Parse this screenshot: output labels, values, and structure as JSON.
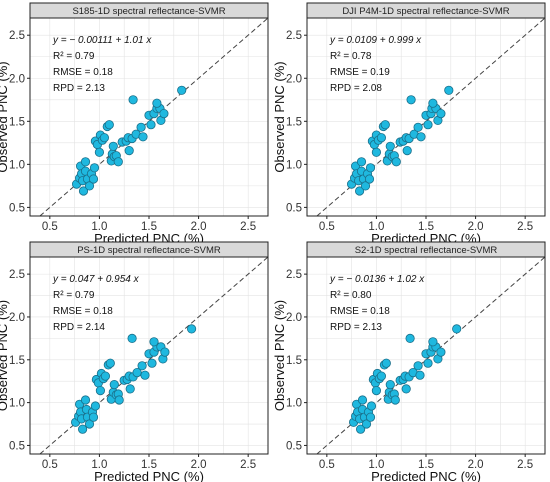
{
  "figure": {
    "colors": {
      "point_fill": "#1fb8df",
      "point_stroke": "#1a6f8a",
      "strip_fill": "#d9d9d9",
      "grid": "#e3e3e3",
      "frame": "#222222",
      "dashed_line": "#444444"
    }
  },
  "chart_data": [
    {
      "type": "scatter",
      "title": "S185-1D spectral reflectance-SVMR",
      "xlabel": "Predicted PNC (%)",
      "ylabel": "Observed PNC (%)",
      "xlim": [
        0.3,
        2.7
      ],
      "ylim": [
        0.4,
        2.7
      ],
      "xticks": [
        "0.5",
        "1.0",
        "1.5",
        "2.0",
        "2.5"
      ],
      "yticks": [
        "0.5",
        "1.0",
        "1.5",
        "2.0",
        "2.5"
      ],
      "grid": true,
      "reference_line": "1:1 dashed",
      "annotation": {
        "equation": "y = − 0.00111 + 1.01 x",
        "r2": "R² = 0.79",
        "rmse": "RMSE = 0.18",
        "rpd": "RPD = 2.13"
      },
      "points": [
        [
          0.77,
          0.77
        ],
        [
          0.8,
          0.84
        ],
        [
          0.81,
          0.98
        ],
        [
          0.82,
          0.89
        ],
        [
          0.83,
          0.81
        ],
        [
          0.84,
          0.69
        ],
        [
          0.86,
          1.03
        ],
        [
          0.86,
          0.92
        ],
        [
          0.88,
          0.83
        ],
        [
          0.9,
          0.75
        ],
        [
          0.92,
          0.89
        ],
        [
          0.94,
          0.83
        ],
        [
          0.95,
          0.96
        ],
        [
          0.96,
          1.27
        ],
        [
          0.98,
          1.23
        ],
        [
          1.0,
          1.14
        ],
        [
          1.01,
          1.34
        ],
        [
          1.03,
          1.28
        ],
        [
          1.05,
          1.31
        ],
        [
          1.08,
          1.44
        ],
        [
          1.1,
          1.46
        ],
        [
          1.12,
          1.04
        ],
        [
          1.13,
          1.12
        ],
        [
          1.14,
          1.21
        ],
        [
          1.15,
          1.09
        ],
        [
          1.17,
          1.1
        ],
        [
          1.19,
          1.03
        ],
        [
          1.23,
          1.26
        ],
        [
          1.27,
          1.27
        ],
        [
          1.29,
          1.31
        ],
        [
          1.3,
          1.16
        ],
        [
          1.33,
          1.3
        ],
        [
          1.34,
          1.75
        ],
        [
          1.37,
          1.35
        ],
        [
          1.42,
          1.43
        ],
        [
          1.44,
          1.32
        ],
        [
          1.5,
          1.57
        ],
        [
          1.52,
          1.46
        ],
        [
          1.55,
          1.59
        ],
        [
          1.58,
          1.65
        ],
        [
          1.61,
          1.65
        ],
        [
          1.62,
          1.51
        ],
        [
          1.65,
          1.59
        ],
        [
          1.83,
          1.86
        ],
        [
          1.58,
          1.71
        ]
      ]
    },
    {
      "type": "scatter",
      "title": "DJI P4M-1D spectral reflectance-SVMR",
      "xlabel": "Predicted PNC (%)",
      "ylabel": "Observed PNC (%)",
      "xlim": [
        0.3,
        2.7
      ],
      "ylim": [
        0.4,
        2.7
      ],
      "xticks": [
        "0.5",
        "1.0",
        "1.5",
        "2.0",
        "2.5"
      ],
      "yticks": [
        "0.5",
        "1.0",
        "1.5",
        "2.0",
        "2.5"
      ],
      "grid": true,
      "reference_line": "1:1 dashed",
      "annotation": {
        "equation": "y = 0.0109 + 0.999 x",
        "r2": "R² = 0.78",
        "rmse": "RMSE = 0.19",
        "rpd": "RPD = 2.08"
      },
      "points": [
        [
          0.75,
          0.77
        ],
        [
          0.78,
          0.84
        ],
        [
          0.79,
          0.98
        ],
        [
          0.8,
          0.89
        ],
        [
          0.82,
          0.81
        ],
        [
          0.83,
          0.69
        ],
        [
          0.85,
          1.03
        ],
        [
          0.85,
          0.92
        ],
        [
          0.87,
          0.83
        ],
        [
          0.89,
          0.75
        ],
        [
          0.91,
          0.89
        ],
        [
          0.93,
          0.83
        ],
        [
          0.94,
          0.96
        ],
        [
          0.96,
          1.27
        ],
        [
          0.98,
          1.23
        ],
        [
          1.0,
          1.14
        ],
        [
          1.0,
          1.34
        ],
        [
          1.02,
          1.28
        ],
        [
          1.05,
          1.31
        ],
        [
          1.07,
          1.44
        ],
        [
          1.09,
          1.46
        ],
        [
          1.11,
          1.04
        ],
        [
          1.13,
          1.12
        ],
        [
          1.14,
          1.21
        ],
        [
          1.16,
          1.09
        ],
        [
          1.18,
          1.1
        ],
        [
          1.2,
          1.03
        ],
        [
          1.24,
          1.26
        ],
        [
          1.27,
          1.27
        ],
        [
          1.3,
          1.31
        ],
        [
          1.31,
          1.16
        ],
        [
          1.33,
          1.3
        ],
        [
          1.35,
          1.75
        ],
        [
          1.38,
          1.35
        ],
        [
          1.42,
          1.43
        ],
        [
          1.45,
          1.32
        ],
        [
          1.5,
          1.57
        ],
        [
          1.52,
          1.46
        ],
        [
          1.55,
          1.59
        ],
        [
          1.56,
          1.65
        ],
        [
          1.6,
          1.65
        ],
        [
          1.62,
          1.51
        ],
        [
          1.65,
          1.59
        ],
        [
          1.73,
          1.86
        ],
        [
          1.57,
          1.71
        ]
      ]
    },
    {
      "type": "scatter",
      "title": "PS-1D spectral reflectance-SVMR",
      "xlabel": "Predicted PNC (%)",
      "ylabel": "Observed PNC (%)",
      "xlim": [
        0.3,
        2.7
      ],
      "ylim": [
        0.4,
        2.7
      ],
      "xticks": [
        "0.5",
        "1.0",
        "1.5",
        "2.0",
        "2.5"
      ],
      "yticks": [
        "0.5",
        "1.0",
        "1.5",
        "2.0",
        "2.5"
      ],
      "grid": true,
      "reference_line": "1:1 dashed",
      "annotation": {
        "equation": "y = 0.047 + 0.954 x",
        "r2": "R² = 0.79",
        "rmse": "RMSE = 0.18",
        "rpd": "RPD = 2.14"
      },
      "points": [
        [
          0.76,
          0.77
        ],
        [
          0.79,
          0.84
        ],
        [
          0.8,
          0.98
        ],
        [
          0.81,
          0.89
        ],
        [
          0.82,
          0.81
        ],
        [
          0.83,
          0.69
        ],
        [
          0.86,
          1.03
        ],
        [
          0.87,
          0.92
        ],
        [
          0.88,
          0.83
        ],
        [
          0.9,
          0.75
        ],
        [
          0.93,
          0.89
        ],
        [
          0.94,
          0.83
        ],
        [
          0.96,
          0.96
        ],
        [
          0.97,
          1.27
        ],
        [
          0.99,
          1.23
        ],
        [
          1.01,
          1.14
        ],
        [
          1.02,
          1.34
        ],
        [
          1.04,
          1.28
        ],
        [
          1.06,
          1.31
        ],
        [
          1.09,
          1.44
        ],
        [
          1.11,
          1.46
        ],
        [
          1.12,
          1.04
        ],
        [
          1.14,
          1.12
        ],
        [
          1.15,
          1.21
        ],
        [
          1.17,
          1.09
        ],
        [
          1.19,
          1.1
        ],
        [
          1.2,
          1.03
        ],
        [
          1.25,
          1.26
        ],
        [
          1.28,
          1.27
        ],
        [
          1.3,
          1.31
        ],
        [
          1.31,
          1.16
        ],
        [
          1.34,
          1.3
        ],
        [
          1.33,
          1.75
        ],
        [
          1.38,
          1.35
        ],
        [
          1.43,
          1.43
        ],
        [
          1.46,
          1.32
        ],
        [
          1.5,
          1.57
        ],
        [
          1.53,
          1.46
        ],
        [
          1.55,
          1.59
        ],
        [
          1.58,
          1.65
        ],
        [
          1.62,
          1.65
        ],
        [
          1.64,
          1.51
        ],
        [
          1.66,
          1.59
        ],
        [
          1.93,
          1.86
        ],
        [
          1.55,
          1.71
        ]
      ]
    },
    {
      "type": "scatter",
      "title": "S2-1D spectral reflectance-SVMR",
      "xlabel": "Predicted PNC (%)",
      "ylabel": "Observed PNC (%)",
      "xlim": [
        0.3,
        2.7
      ],
      "ylim": [
        0.4,
        2.7
      ],
      "xticks": [
        "0.5",
        "1.0",
        "1.5",
        "2.0",
        "2.5"
      ],
      "yticks": [
        "0.5",
        "1.0",
        "1.5",
        "2.0",
        "2.5"
      ],
      "grid": true,
      "reference_line": "1:1 dashed",
      "annotation": {
        "equation": "y = − 0.0136 + 1.02 x",
        "r2": "R² = 0.80",
        "rmse": "RMSE = 0.18",
        "rpd": "RPD = 2.13"
      },
      "points": [
        [
          0.77,
          0.77
        ],
        [
          0.79,
          0.84
        ],
        [
          0.8,
          0.98
        ],
        [
          0.81,
          0.89
        ],
        [
          0.83,
          0.81
        ],
        [
          0.84,
          0.69
        ],
        [
          0.86,
          1.03
        ],
        [
          0.86,
          0.92
        ],
        [
          0.88,
          0.83
        ],
        [
          0.9,
          0.75
        ],
        [
          0.92,
          0.89
        ],
        [
          0.94,
          0.83
        ],
        [
          0.95,
          0.96
        ],
        [
          0.97,
          1.27
        ],
        [
          0.99,
          1.23
        ],
        [
          1.0,
          1.14
        ],
        [
          1.01,
          1.34
        ],
        [
          1.03,
          1.28
        ],
        [
          1.05,
          1.31
        ],
        [
          1.08,
          1.44
        ],
        [
          1.1,
          1.46
        ],
        [
          1.12,
          1.04
        ],
        [
          1.13,
          1.12
        ],
        [
          1.14,
          1.21
        ],
        [
          1.16,
          1.09
        ],
        [
          1.18,
          1.1
        ],
        [
          1.19,
          1.03
        ],
        [
          1.24,
          1.26
        ],
        [
          1.27,
          1.27
        ],
        [
          1.29,
          1.31
        ],
        [
          1.3,
          1.16
        ],
        [
          1.33,
          1.3
        ],
        [
          1.34,
          1.75
        ],
        [
          1.37,
          1.35
        ],
        [
          1.42,
          1.43
        ],
        [
          1.44,
          1.32
        ],
        [
          1.5,
          1.57
        ],
        [
          1.52,
          1.46
        ],
        [
          1.55,
          1.59
        ],
        [
          1.57,
          1.65
        ],
        [
          1.6,
          1.65
        ],
        [
          1.62,
          1.51
        ],
        [
          1.65,
          1.59
        ],
        [
          1.81,
          1.86
        ],
        [
          1.57,
          1.71
        ]
      ]
    }
  ]
}
